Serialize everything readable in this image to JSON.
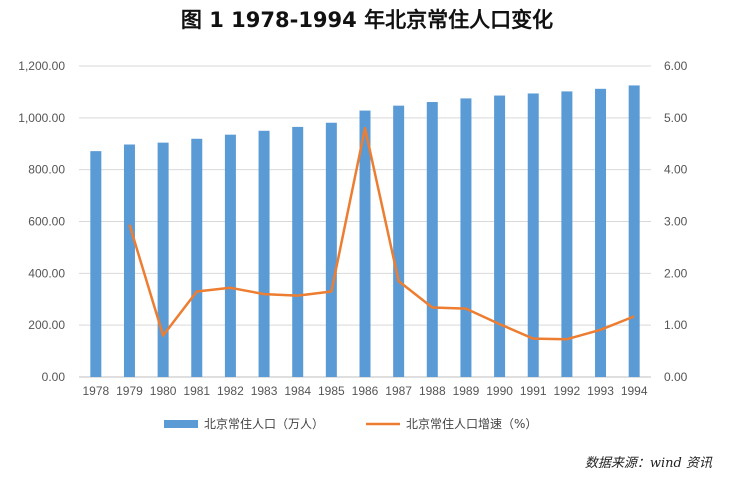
{
  "title": "图 1   1978-1994 年北京常住人口变化",
  "source": "数据来源：wind 资讯",
  "chart_data": {
    "type": "bar",
    "categories": [
      "1978",
      "1979",
      "1980",
      "1981",
      "1982",
      "1983",
      "1984",
      "1985",
      "1986",
      "1987",
      "1988",
      "1989",
      "1990",
      "1991",
      "1992",
      "1993",
      "1994"
    ],
    "series": [
      {
        "name": "北京常住人口（万人）",
        "type": "bar",
        "axis": "left",
        "color": "#5B9BD5",
        "values": [
          871.5,
          897.1,
          904.3,
          919.2,
          935.0,
          950.0,
          965.0,
          981.0,
          1028.0,
          1047.0,
          1061.0,
          1075.0,
          1086.0,
          1094.0,
          1102.0,
          1112.0,
          1125.0
        ]
      },
      {
        "name": "北京常住人口增速（%）",
        "type": "line",
        "axis": "right",
        "color": "#ED7D31",
        "values": [
          null,
          2.94,
          0.8,
          1.65,
          1.72,
          1.6,
          1.57,
          1.65,
          4.8,
          1.85,
          1.34,
          1.32,
          1.02,
          0.74,
          0.73,
          0.91,
          1.17
        ]
      }
    ],
    "y_left": {
      "ylim": [
        0,
        1200
      ],
      "ticks": [
        "0.00",
        "200.00",
        "400.00",
        "600.00",
        "800.00",
        "1,000.00",
        "1,200.00"
      ]
    },
    "y_right": {
      "ylim": [
        0,
        6
      ],
      "ticks": [
        "0.00",
        "1.00",
        "2.00",
        "3.00",
        "4.00",
        "5.00",
        "6.00"
      ]
    },
    "grid": true,
    "legend_position": "bottom"
  }
}
